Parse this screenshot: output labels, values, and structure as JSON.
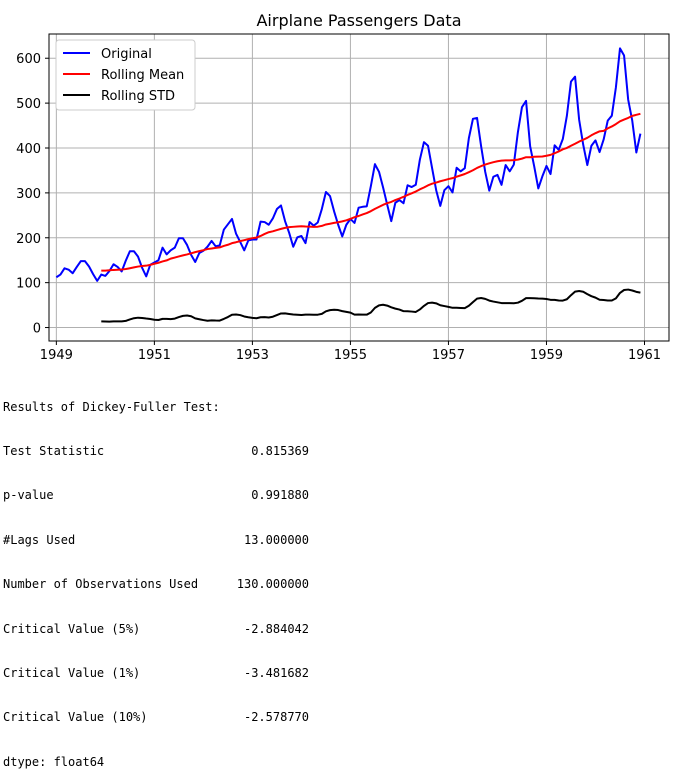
{
  "chart_data": {
    "type": "line",
    "title": "Airplane Passengers Data",
    "xlabel": "",
    "ylabel": "",
    "xlim": [
      1948.85,
      1961.5
    ],
    "ylim": [
      -30,
      654
    ],
    "x_ticks": [
      1949,
      1951,
      1953,
      1955,
      1957,
      1959,
      1961
    ],
    "x_tick_labels": [
      "1949",
      "1951",
      "1953",
      "1955",
      "1957",
      "1959",
      "1961"
    ],
    "y_ticks": [
      0,
      100,
      200,
      300,
      400,
      500,
      600
    ],
    "y_tick_labels": [
      "0",
      "100",
      "200",
      "300",
      "400",
      "500",
      "600"
    ],
    "grid": true,
    "legend_position": "top-left",
    "x_start": "1949-01",
    "x_step": "month",
    "series": [
      {
        "name": "Original",
        "color": "#0000ff",
        "values": [
          112,
          118,
          132,
          129,
          121,
          135,
          148,
          148,
          136,
          119,
          104,
          118,
          115,
          126,
          141,
          135,
          125,
          149,
          170,
          170,
          158,
          133,
          114,
          140,
          145,
          150,
          178,
          163,
          172,
          178,
          199,
          199,
          184,
          162,
          146,
          166,
          171,
          180,
          193,
          181,
          183,
          218,
          230,
          242,
          209,
          191,
          172,
          194,
          196,
          196,
          236,
          235,
          229,
          243,
          264,
          272,
          237,
          211,
          180,
          201,
          204,
          188,
          235,
          227,
          234,
          264,
          302,
          293,
          259,
          229,
          203,
          229,
          242,
          233,
          267,
          269,
          270,
          315,
          364,
          347,
          312,
          274,
          237,
          278,
          284,
          277,
          317,
          313,
          318,
          374,
          413,
          405,
          355,
          306,
          271,
          306,
          315,
          301,
          356,
          348,
          355,
          422,
          465,
          467,
          404,
          347,
          305,
          336,
          340,
          318,
          362,
          348,
          363,
          435,
          491,
          505,
          404,
          359,
          310,
          337,
          360,
          342,
          406,
          396,
          420,
          472,
          548,
          559,
          463,
          407,
          362,
          405,
          417,
          391,
          419,
          461,
          472,
          535,
          622,
          606,
          508,
          461,
          390,
          432
        ]
      },
      {
        "name": "Rolling Mean",
        "color": "#ff0000",
        "window": 12,
        "values": []
      },
      {
        "name": "Rolling STD",
        "color": "#000000",
        "window": 12,
        "values": []
      }
    ]
  },
  "results": {
    "header": "Results of Dickey-Fuller Test:",
    "rows": [
      {
        "label": "Test Statistic",
        "value": "0.815369"
      },
      {
        "label": "p-value",
        "value": "0.991880"
      },
      {
        "label": "#Lags Used",
        "value": "13.000000"
      },
      {
        "label": "Number of Observations Used",
        "value": "130.000000"
      },
      {
        "label": "Critical Value (5%)",
        "value": "-2.884042"
      },
      {
        "label": "Critical Value (1%)",
        "value": "-3.481682"
      },
      {
        "label": "Critical Value (10%)",
        "value": "-2.578770"
      }
    ],
    "dtype": "dtype: float64"
  }
}
